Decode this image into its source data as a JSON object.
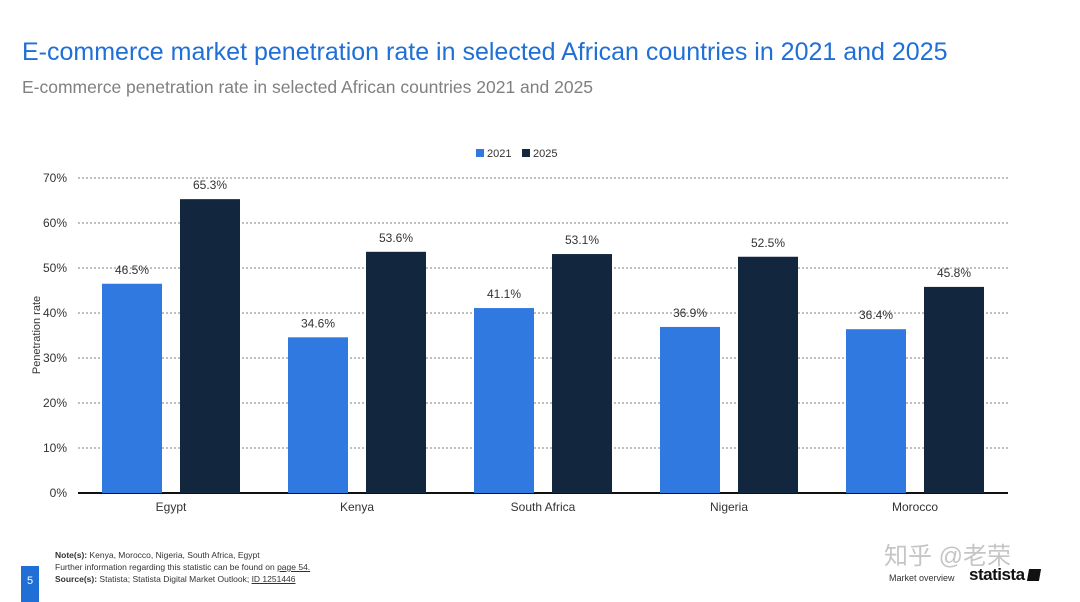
{
  "header": {
    "title": "E-commerce market penetration rate in selected African countries in 2021 and 2025",
    "subtitle": "E-commerce penetration rate in selected African countries 2021 and 2025"
  },
  "colors": {
    "s2021": "#2f79e0",
    "s2025": "#12263e",
    "title": "#1f6fd6"
  },
  "chart_data": {
    "type": "bar",
    "title": "E-commerce penetration rate in selected African countries 2021 and 2025",
    "xlabel": "",
    "ylabel": "Penetration rate",
    "ylim": [
      0,
      70
    ],
    "yticks": [
      0,
      10,
      20,
      30,
      40,
      50,
      60,
      70
    ],
    "ytick_labels": [
      "0%",
      "10%",
      "20%",
      "30%",
      "40%",
      "50%",
      "60%",
      "70%"
    ],
    "grid": true,
    "legend_position": "top-center",
    "categories": [
      "Egypt",
      "Kenya",
      "South Africa",
      "Nigeria",
      "Morocco"
    ],
    "series": [
      {
        "name": "2021",
        "values": [
          46.5,
          34.6,
          41.1,
          36.9,
          36.4
        ],
        "labels": [
          "46.5%",
          "34.6%",
          "41.1%",
          "36.9%",
          "36.4%"
        ]
      },
      {
        "name": "2025",
        "values": [
          65.3,
          53.6,
          53.1,
          52.5,
          45.8
        ],
        "labels": [
          "65.3%",
          "53.6%",
          "53.1%",
          "52.5%",
          "45.8%"
        ]
      }
    ]
  },
  "footer": {
    "notes_label": "Note(s):",
    "notes_text": "Kenya, Morocco, Nigeria, South Africa, Egypt",
    "further_text": "Further information regarding this statistic can be found on",
    "further_link": "page 54.",
    "sources_label": "Source(s):",
    "sources_text": "Statista; Statista Digital Market Outlook;",
    "sources_link": "ID 1251446",
    "page_number": "5",
    "section_label": "Market overview",
    "logo_text": "statista",
    "watermark": "知乎 @老荣"
  }
}
